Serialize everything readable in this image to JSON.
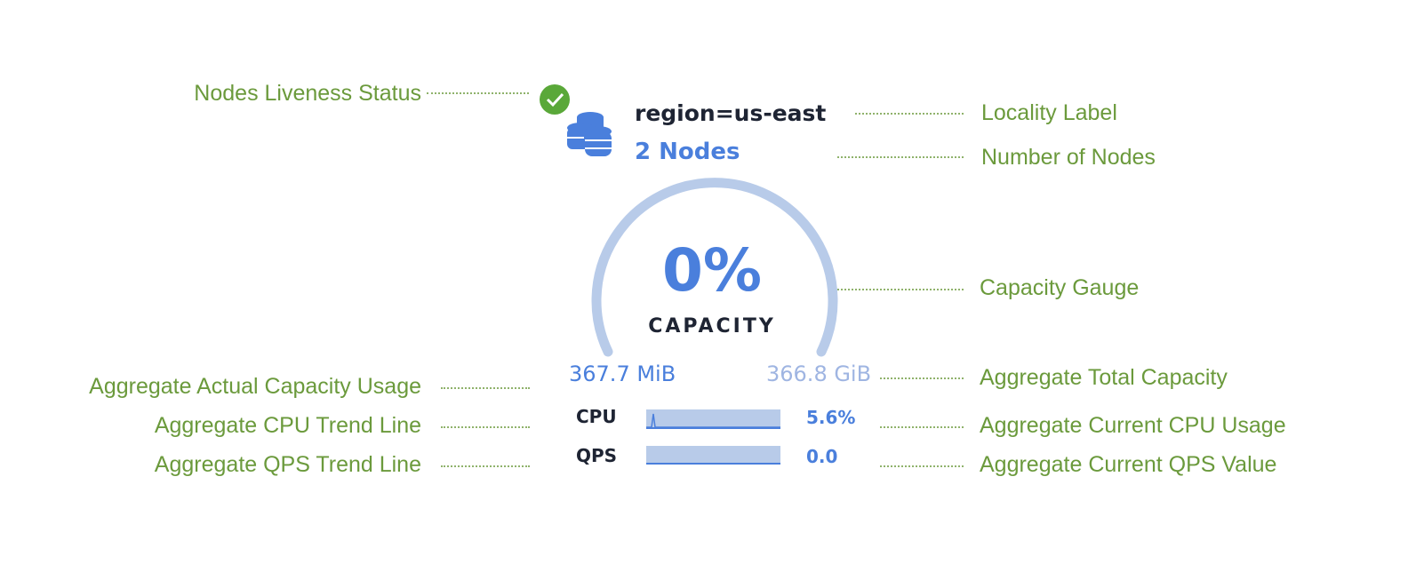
{
  "widget": {
    "locality": "region=us-east",
    "nodes": "2 Nodes",
    "liveness": "ok",
    "capacity_percent": "0%",
    "capacity_label": "CAPACITY",
    "capacity_fraction": 0,
    "used": "367.7 MiB",
    "total": "366.8 GiB",
    "cpu_label": "CPU",
    "cpu_value": "5.6%",
    "qps_label": "QPS",
    "qps_value": "0.0",
    "colors": {
      "accent": "#4a7fdc",
      "gauge": "#b8cbe9",
      "ok": "#5aa839",
      "annotation": "#6b9a3c"
    }
  },
  "annotations": {
    "liveness": "Nodes Liveness Status",
    "locality": "Locality Label",
    "nodes": "Number of Nodes",
    "gauge": "Capacity Gauge",
    "used": "Aggregate Actual Capacity Usage",
    "total": "Aggregate Total Capacity",
    "cpu_trend": "Aggregate CPU Trend Line",
    "cpu_current": "Aggregate Current CPU Usage",
    "qps_trend": "Aggregate QPS Trend Line",
    "qps_current": "Aggregate Current QPS Value"
  }
}
